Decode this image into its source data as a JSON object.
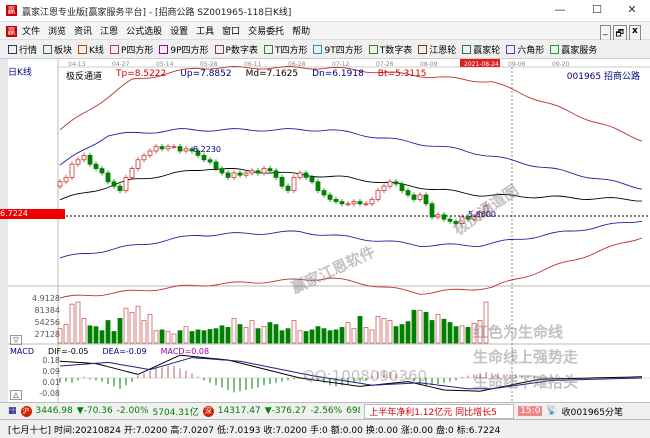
{
  "window": {
    "title": "赢家江恩专业版[赢家服务平台] - [招商公路  SZ001965-118日K线]",
    "min": "—",
    "max": "☐",
    "close": "✕"
  },
  "menu": [
    "文件",
    "浏览",
    "资讯",
    "江恩",
    "公式选股",
    "设置",
    "工具",
    "窗口",
    "交易委托",
    "帮助"
  ],
  "mdi_controls": [
    "_",
    "🗗",
    "x"
  ],
  "toolbar": [
    {
      "label": "行情",
      "icon": "grid-icon",
      "color": "#333366"
    },
    {
      "label": "板块",
      "icon": "blocks-icon",
      "color": "#2a7a2a"
    },
    {
      "label": "K线",
      "icon": "kline-icon",
      "color": "#c04000"
    },
    {
      "label": "P四方形",
      "icon": "P4-icon",
      "color": "#c04040"
    },
    {
      "label": "9P四方形",
      "icon": "9P-icon",
      "color": "#a000a0"
    },
    {
      "label": "P数字表",
      "icon": "PN-icon",
      "color": "#804040"
    },
    {
      "label": "T四方形",
      "icon": "T4-icon",
      "color": "#2a8a2a"
    },
    {
      "label": "9T四方形",
      "icon": "9T-icon",
      "color": "#2090c0"
    },
    {
      "label": "T数字表",
      "icon": "TN-icon",
      "color": "#408020"
    },
    {
      "label": "江恩轮",
      "icon": "wheel-icon",
      "color": "#804000"
    },
    {
      "label": "赢家轮",
      "icon": "wheel2-icon",
      "color": "#208040"
    },
    {
      "label": "六角形",
      "icon": "hexagon-icon",
      "color": "#6040a0"
    },
    {
      "label": "赢家服务",
      "icon": "dollar-icon",
      "color": "#20a020"
    }
  ],
  "chart": {
    "period_label": "日K线",
    "dates": [
      "04-13",
      "04-27",
      "05-14",
      "05-28",
      "06-11",
      "06-28",
      "07-12",
      "07-26",
      "08-09",
      "2021-08-24",
      "09-06",
      "09-20"
    ],
    "indicator": {
      "name": "极反通道",
      "tp": "Tp=8.5222",
      "up": "Up=7.8852",
      "md": "Md=7.1625",
      "dn": "Dn=6.1918",
      "bt": "Bt=5.3115"
    },
    "stock": "001965 招商公路",
    "current_price_label": "6.7224",
    "high_label": "8.2230",
    "low_label": "5.8600",
    "volume_axis": [
      "4.9128",
      "81384",
      "54256",
      "27128"
    ],
    "colors": {
      "up": "#cc3333",
      "down": "#008000",
      "tp": "#c03030",
      "up_line": "#2020a0",
      "md": "#000000",
      "dn": "#2020a0",
      "bt": "#c03030"
    },
    "closes": [
      7.5,
      7.6,
      7.9,
      8.0,
      8.1,
      7.9,
      7.8,
      7.7,
      7.5,
      7.4,
      7.3,
      7.6,
      7.8,
      8.0,
      8.1,
      8.2,
      8.3,
      8.25,
      8.3,
      8.3,
      8.2,
      8.25,
      8.2,
      8.1,
      8.0,
      7.95,
      7.8,
      7.7,
      7.6,
      7.7,
      7.65,
      7.7,
      7.75,
      7.7,
      7.8,
      7.75,
      7.6,
      7.4,
      7.3,
      7.6,
      7.7,
      7.6,
      7.5,
      7.3,
      7.2,
      7.1,
      7.05,
      7.0,
      7.0,
      7.05,
      7.0,
      7.0,
      7.1,
      7.3,
      7.4,
      7.5,
      7.45,
      7.3,
      7.2,
      7.1,
      7.2,
      7.0,
      6.7,
      6.75,
      6.65,
      6.6,
      6.55,
      6.7,
      6.65,
      6.7,
      6.8,
      6.95
    ],
    "bands": {
      "tp": [
        [
          0,
          8.68
        ],
        [
          12,
          9.81
        ],
        [
          23,
          10.09
        ],
        [
          45,
          10.09
        ],
        [
          72,
          9.77
        ],
        [
          97,
          8.45
        ]
      ],
      "up": [
        [
          0,
          7.88
        ],
        [
          8,
          8.56
        ],
        [
          20,
          8.68
        ],
        [
          45,
          8.68
        ],
        [
          67,
          8.22
        ],
        [
          97,
          7.36
        ]
      ],
      "md": [
        [
          0,
          7.09
        ],
        [
          12,
          7.54
        ],
        [
          25,
          7.81
        ],
        [
          48,
          7.59
        ],
        [
          70,
          7.2
        ],
        [
          97,
          7.09
        ]
      ],
      "dn": [
        [
          0,
          5.77
        ],
        [
          8,
          5.95
        ],
        [
          23,
          6.29
        ],
        [
          40,
          6.36
        ],
        [
          60,
          6.06
        ],
        [
          70,
          6.06
        ],
        [
          97,
          6.63
        ]
      ],
      "bt": [
        [
          0,
          4.86
        ],
        [
          23,
          5.15
        ],
        [
          45,
          5.31
        ],
        [
          60,
          4.97
        ],
        [
          72,
          5.1
        ],
        [
          97,
          6.25
        ]
      ]
    },
    "volumes": [
      35,
      45,
      95,
      100,
      60,
      42,
      40,
      30,
      55,
      28,
      60,
      85,
      75,
      90,
      55,
      70,
      30,
      32,
      28,
      22,
      30,
      40,
      28,
      32,
      30,
      33,
      35,
      42,
      38,
      60,
      45,
      38,
      55,
      35,
      40,
      50,
      45,
      30,
      35,
      55,
      30,
      28,
      32,
      40,
      35,
      30,
      32,
      38,
      50,
      35,
      65,
      38,
      32,
      65,
      60,
      55,
      40,
      45,
      52,
      80,
      80,
      75,
      55,
      70,
      58,
      50,
      40,
      42,
      38,
      48,
      55,
      100
    ],
    "macd": {
      "dif_label": "DIF=-0.05",
      "dea_label": "DEA=-0.09",
      "macd_label": "MACD=0.08",
      "axis": [
        "0.18",
        "0.09",
        "0.01",
        "-0.08"
      ],
      "hist": [
        -0.04,
        -0.03,
        -0.04,
        -0.02,
        0.01,
        -0.01,
        -0.02,
        -0.03,
        -0.05,
        -0.07,
        -0.09,
        -0.06,
        -0.03,
        0.02,
        0.04,
        0.06,
        0.08,
        0.09,
        0.1,
        0.1,
        0.08,
        0.06,
        0.04,
        0.01,
        -0.02,
        -0.04,
        -0.06,
        -0.08,
        -0.1,
        -0.12,
        -0.11,
        -0.1,
        -0.09,
        -0.08,
        -0.06,
        -0.05,
        -0.04,
        -0.03,
        -0.02,
        -0.01,
        0.01,
        0.01,
        -0.01,
        -0.02,
        -0.04,
        -0.06,
        -0.07,
        -0.06,
        -0.05,
        -0.04,
        -0.03,
        -0.02,
        0.02,
        0.05,
        0.06,
        0.05,
        0.03,
        0.01,
        -0.01,
        -0.03,
        -0.05,
        -0.07,
        -0.06,
        -0.05,
        -0.04,
        -0.03,
        -0.02,
        0.01,
        0.02,
        0.03,
        0.04,
        0.05,
        0.04,
        0.04,
        0.03,
        0.03,
        0.03,
        0.02,
        0.02,
        0.02,
        0.01,
        0.01,
        0.01
      ],
      "dif": [
        [
          0,
          0.14
        ],
        [
          6,
          0.12
        ],
        [
          13,
          0.03
        ],
        [
          20,
          0.19
        ],
        [
          28,
          0.15
        ],
        [
          40,
          0.0
        ],
        [
          50,
          -0.07
        ],
        [
          58,
          -0.03
        ],
        [
          64,
          -0.1
        ],
        [
          70,
          -0.11
        ],
        [
          80,
          -0.01
        ],
        [
          97,
          0.01
        ]
      ],
      "dea": [
        [
          0,
          0.1
        ],
        [
          8,
          0.13
        ],
        [
          15,
          0.07
        ],
        [
          22,
          0.17
        ],
        [
          30,
          0.14
        ],
        [
          42,
          0.02
        ],
        [
          52,
          -0.06
        ],
        [
          60,
          -0.04
        ],
        [
          68,
          -0.09
        ],
        [
          72,
          -0.09
        ],
        [
          82,
          -0.02
        ],
        [
          97,
          0.0
        ]
      ]
    }
  },
  "watermarks": [
    "赢家江恩软件",
    "极反通道图",
    "红色为生命线",
    "生命线上强势走",
    "生命线下难抬头",
    "QQ:1008090360"
  ],
  "status": {
    "sh_index": "3446.98",
    "sh_change": "▼-70.36",
    "sh_pct": "-2.00%",
    "sh_amount": "5704.31亿",
    "sz_index": "14317.47",
    "sz_change": "▼-376.27",
    "sz_pct": "-2.56%",
    "sz_amount": "6988.3",
    "news": "上半年净利1.12亿元 同比增长5",
    "badge": "15:0",
    "ticker": "收001965分笔"
  },
  "bottom": {
    "lunar": "[七月十七]",
    "time": "时间:20210824",
    "open": "开:7.0200",
    "high": "高:7.0207",
    "low": "低:7.0193",
    "close": "收:7.0200",
    "hands": "手:0",
    "amount": "额:0.00",
    "turnover": "换:0.00",
    "change": "涨:0.00",
    "disk": "盘:0",
    "mark": "标:6.7224"
  }
}
